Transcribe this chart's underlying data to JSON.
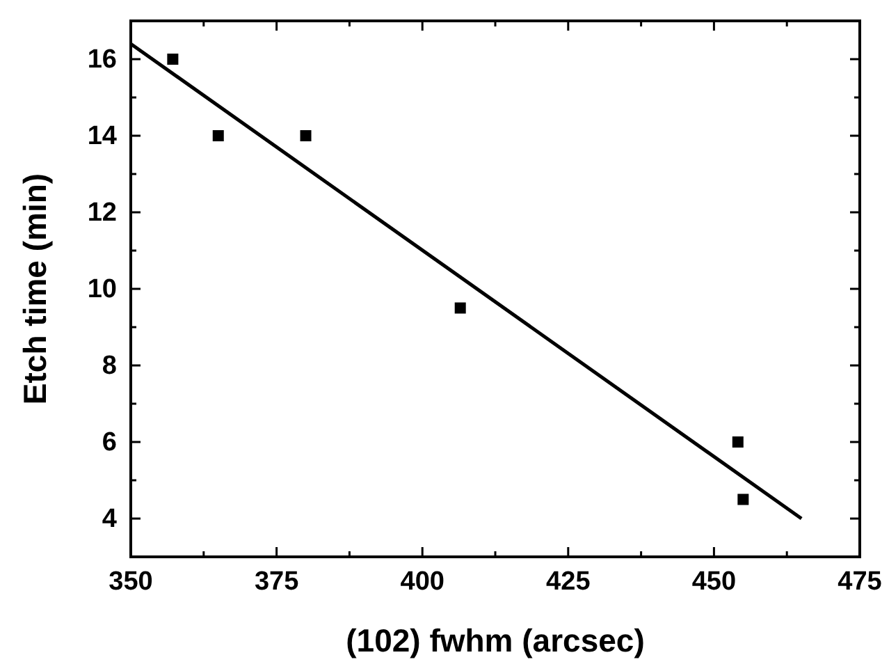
{
  "chart_data": {
    "type": "scatter",
    "xlabel": "(102) fwhm (arcsec)",
    "ylabel": "Etch time (min)",
    "xlim": [
      350,
      475
    ],
    "ylim": [
      3,
      17
    ],
    "xticks": [
      350,
      {
        "value": 362.5,
        "label": null
      },
      375,
      {
        "value": 387.5,
        "label": null
      },
      400,
      {
        "value": 412.5,
        "label": null
      },
      425,
      {
        "value": 437.5,
        "label": null
      },
      450,
      {
        "value": 462.5,
        "label": null
      },
      475
    ],
    "yticks": [
      {
        "value": 3,
        "label": null
      },
      4,
      {
        "value": 5,
        "label": null
      },
      6,
      {
        "value": 7,
        "label": null
      },
      8,
      {
        "value": 9,
        "label": null
      },
      10,
      {
        "value": 11,
        "label": null
      },
      12,
      {
        "value": 13,
        "label": null
      },
      14,
      {
        "value": 15,
        "label": null
      },
      16,
      {
        "value": 17,
        "label": null
      }
    ],
    "grid": false,
    "series": [
      {
        "marker": "square",
        "color": "#000000",
        "x": [
          357.2,
          365,
          380,
          406.5,
          454.1,
          455
        ],
        "values": [
          16,
          14,
          14,
          9.5,
          6,
          4.5
        ]
      },
      {
        "type": "line",
        "color": "#000000",
        "x": [
          350,
          465
        ],
        "values": [
          16.4,
          4.0
        ]
      }
    ]
  }
}
